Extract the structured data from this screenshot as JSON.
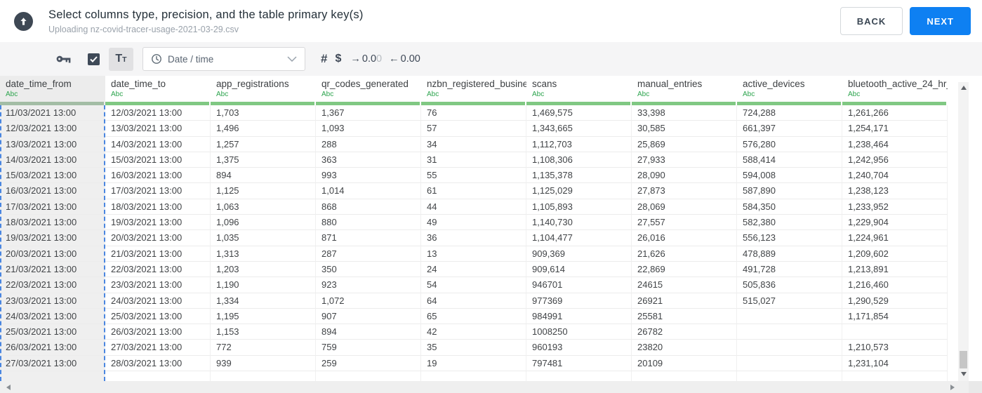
{
  "header": {
    "title": "Select columns type, precision, and the table primary key(s)",
    "subtitle": "Uploading nz-covid-tracer-usage-2021-03-29.csv",
    "back_label": "BACK",
    "next_label": "NEXT"
  },
  "toolbar": {
    "key_icon": "key-icon",
    "checkbox_checked": true,
    "check_icon": "check-icon",
    "text_tool": {
      "main": "T",
      "sub": "T"
    },
    "type_dropdown": {
      "icon": "clock-icon",
      "value": "Date / time",
      "chevron": "chevron-down-icon"
    },
    "number_label": "#",
    "currency_label": "$",
    "precision_increase": {
      "arrow": "→",
      "value_dark": "0.0",
      "value_light": "0"
    },
    "precision_decrease": {
      "arrow": "←",
      "value_dark": "0.00",
      "value_light": ""
    }
  },
  "table": {
    "columns": [
      {
        "name": "date_time_from",
        "type_label": "Abc",
        "selected": true
      },
      {
        "name": "date_time_to",
        "type_label": "Abc",
        "selected": false
      },
      {
        "name": "app_registrations",
        "type_label": "Abc",
        "selected": false
      },
      {
        "name": "qr_codes_generated",
        "type_label": "Abc",
        "selected": false
      },
      {
        "name": "nzbn_registered_busine",
        "type_label": "Abc",
        "selected": false
      },
      {
        "name": "scans",
        "type_label": "Abc",
        "selected": false
      },
      {
        "name": "manual_entries",
        "type_label": "Abc",
        "selected": false
      },
      {
        "name": "active_devices",
        "type_label": "Abc",
        "selected": false
      },
      {
        "name": "bluetooth_active_24_hr_",
        "type_label": "Abc",
        "selected": false
      }
    ],
    "rows": [
      [
        "11/03/2021 13:00",
        "12/03/2021 13:00",
        "1,703",
        "1,367",
        "76",
        "1,469,575",
        "33,398",
        "724,288",
        "1,261,266"
      ],
      [
        "12/03/2021 13:00",
        "13/03/2021 13:00",
        "1,496",
        "1,093",
        "57",
        "1,343,665",
        "30,585",
        "661,397",
        "1,254,171"
      ],
      [
        "13/03/2021 13:00",
        "14/03/2021 13:00",
        "1,257",
        "288",
        "34",
        "1,112,703",
        "25,869",
        "576,280",
        "1,238,464"
      ],
      [
        "14/03/2021 13:00",
        "15/03/2021 13:00",
        "1,375",
        "363",
        "31",
        "1,108,306",
        "27,933",
        "588,414",
        "1,242,956"
      ],
      [
        "15/03/2021 13:00",
        "16/03/2021 13:00",
        "894",
        "993",
        "55",
        "1,135,378",
        "28,090",
        "594,008",
        "1,240,704"
      ],
      [
        "16/03/2021 13:00",
        "17/03/2021 13:00",
        "1,125",
        "1,014",
        "61",
        "1,125,029",
        "27,873",
        "587,890",
        "1,238,123"
      ],
      [
        "17/03/2021 13:00",
        "18/03/2021 13:00",
        "1,063",
        "868",
        "44",
        "1,105,893",
        "28,069",
        "584,350",
        "1,233,952"
      ],
      [
        "18/03/2021 13:00",
        "19/03/2021 13:00",
        "1,096",
        "880",
        "49",
        "1,140,730",
        "27,557",
        "582,380",
        "1,229,904"
      ],
      [
        "19/03/2021 13:00",
        "20/03/2021 13:00",
        "1,035",
        "871",
        "36",
        "1,104,477",
        "26,016",
        "556,123",
        "1,224,961"
      ],
      [
        "20/03/2021 13:00",
        "21/03/2021 13:00",
        "1,313",
        "287",
        "13",
        "909,369",
        "21,626",
        "478,889",
        "1,209,602"
      ],
      [
        "21/03/2021 13:00",
        "22/03/2021 13:00",
        "1,203",
        "350",
        "24",
        "909,614",
        "22,869",
        "491,728",
        "1,213,891"
      ],
      [
        "22/03/2021 13:00",
        "23/03/2021 13:00",
        "1,190",
        "923",
        "54",
        "946701",
        "24615",
        "505,836",
        "1,216,460"
      ],
      [
        "23/03/2021 13:00",
        "24/03/2021 13:00",
        "1,334",
        "1,072",
        "64",
        "977369",
        "26921",
        "515,027",
        "1,290,529"
      ],
      [
        "24/03/2021 13:00",
        "25/03/2021 13:00",
        "1,195",
        "907",
        "65",
        "984991",
        "25581",
        "",
        "1,171,854"
      ],
      [
        "25/03/2021 13:00",
        "26/03/2021 13:00",
        "1,153",
        "894",
        "42",
        "1008250",
        "26782",
        "",
        ""
      ],
      [
        "26/03/2021 13:00",
        "27/03/2021 13:00",
        "772",
        "759",
        "35",
        "960193",
        "23820",
        "",
        "1,210,573"
      ],
      [
        "27/03/2021 13:00",
        "28/03/2021 13:00",
        "939",
        "259",
        "19",
        "797481",
        "20109",
        "",
        "1,231,104"
      ]
    ]
  },
  "colors": {
    "accent_blue": "#0e80f2",
    "type_green": "#2da44e",
    "bar_green": "#80c883",
    "selection_blue": "#4a86e0",
    "toolbar_bg": "#f5f5f6"
  }
}
